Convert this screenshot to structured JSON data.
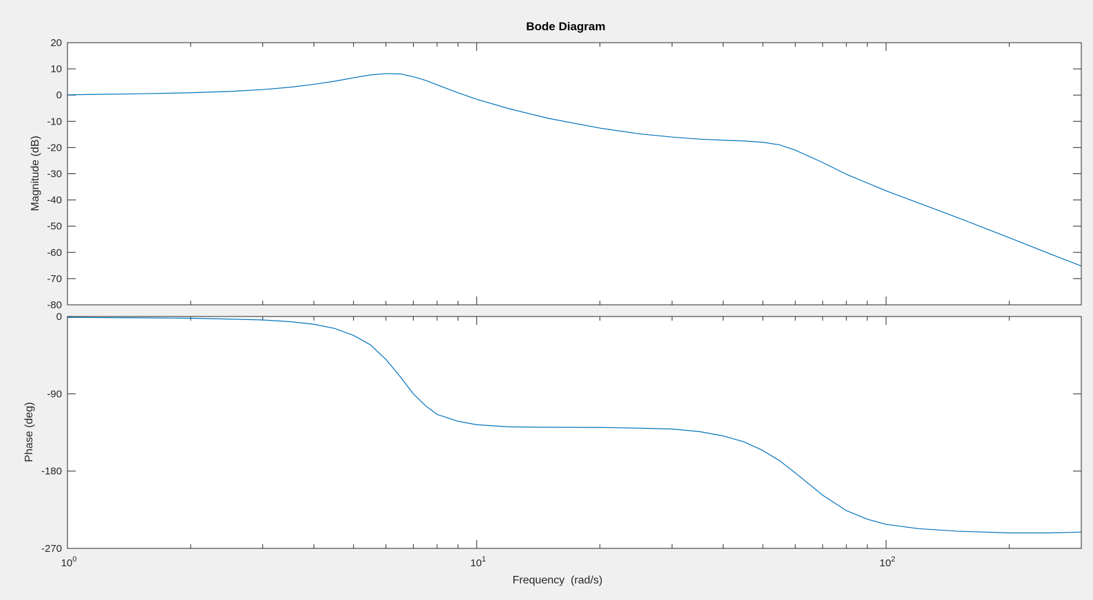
{
  "window": {
    "background": "#f0f0f0"
  },
  "chart_data": {
    "type": "line",
    "title": "Bode Diagram",
    "xlabel": "Frequency  (rad/s)",
    "x_scale": "log",
    "xlim": [
      1,
      300
    ],
    "x_tick_labels": [
      {
        "value": 1,
        "base": "10",
        "exp": "0"
      },
      {
        "value": 10,
        "base": "10",
        "exp": "1"
      },
      {
        "value": 100,
        "base": "10",
        "exp": "2"
      }
    ],
    "line_color": "#0072bd",
    "grid": false,
    "magnitude": {
      "ylabel": "Magnitude (dB)",
      "ylim": [
        -80,
        20
      ],
      "yticks": [
        20,
        10,
        0,
        -10,
        -20,
        -30,
        -40,
        -50,
        -60,
        -70,
        -80
      ],
      "ytick_labels": [
        "20",
        "10",
        "0",
        "-10",
        "-20",
        "-30",
        "-40",
        "-50",
        "-60",
        "-70",
        "-80"
      ],
      "series": {
        "x": [
          1,
          1.5,
          2,
          2.5,
          3,
          3.5,
          4,
          4.5,
          5,
          5.5,
          6,
          6.5,
          7,
          7.5,
          8,
          9,
          10,
          12,
          15,
          20,
          25,
          30,
          35,
          40,
          45,
          50,
          55,
          60,
          70,
          80,
          100,
          150,
          200,
          250,
          300
        ],
        "y": [
          0.1,
          0.5,
          0.9,
          1.4,
          2.1,
          3.0,
          4.1,
          5.3,
          6.6,
          7.7,
          8.2,
          8.1,
          7.0,
          5.6,
          3.9,
          0.9,
          -1.6,
          -5.2,
          -8.9,
          -12.6,
          -14.8,
          -16.0,
          -16.8,
          -17.2,
          -17.5,
          -18.0,
          -19.0,
          -21.0,
          -25.7,
          -30.2,
          -36.5,
          -46.8,
          -54.4,
          -60.4,
          -65.2
        ]
      }
    },
    "phase": {
      "ylabel": "Phase (deg)",
      "ylim": [
        -270,
        0
      ],
      "yticks": [
        0,
        -90,
        -180,
        -270
      ],
      "ytick_labels": [
        "0",
        "-90",
        "-180",
        "-270"
      ],
      "series": {
        "x": [
          1,
          1.5,
          2,
          2.5,
          3,
          3.5,
          4,
          4.5,
          5,
          5.5,
          6,
          6.5,
          7,
          7.5,
          8,
          9,
          10,
          12,
          15,
          20,
          25,
          30,
          35,
          40,
          45,
          50,
          55,
          60,
          70,
          80,
          90,
          100,
          120,
          150,
          200,
          250,
          300
        ],
        "y": [
          -1,
          -1.5,
          -2,
          -3,
          -4,
          -6,
          -9,
          -14,
          -22,
          -33,
          -50,
          -70,
          -90,
          -104,
          -114,
          -122,
          -126,
          -128.5,
          -129,
          -129.2,
          -130,
          -131,
          -134,
          -139,
          -146,
          -156,
          -168,
          -182,
          -208,
          -226,
          -236,
          -242,
          -247,
          -250,
          -252,
          -252,
          -251
        ]
      }
    }
  }
}
